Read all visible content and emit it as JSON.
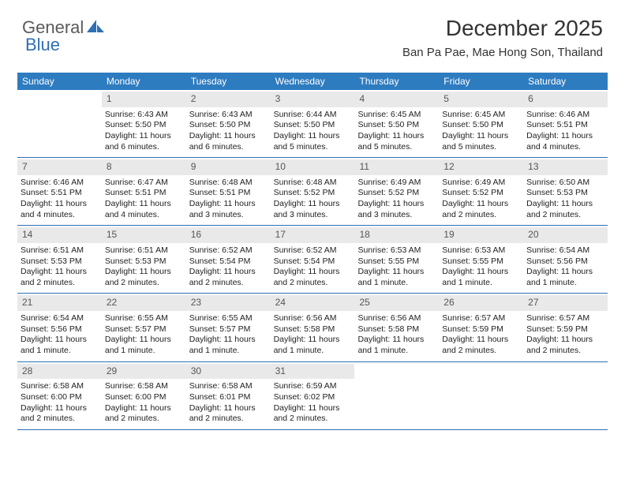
{
  "brand": {
    "part1": "General",
    "part2": "Blue"
  },
  "header": {
    "title": "December 2025",
    "location": "Ban Pa Pae, Mae Hong Son, Thailand"
  },
  "dow": [
    "Sunday",
    "Monday",
    "Tuesday",
    "Wednesday",
    "Thursday",
    "Friday",
    "Saturday"
  ],
  "colors": {
    "header_bar": "#2e7cc0",
    "divider": "#2e6fb5",
    "daynum_bg": "#e9e9e9",
    "brand_blue": "#2e6fb5",
    "brand_gray": "#5a5a5a"
  },
  "weeks": [
    [
      {
        "n": "",
        "empty": true
      },
      {
        "n": "1",
        "sr": "Sunrise: 6:43 AM",
        "ss": "Sunset: 5:50 PM",
        "dl": "Daylight: 11 hours and 6 minutes."
      },
      {
        "n": "2",
        "sr": "Sunrise: 6:43 AM",
        "ss": "Sunset: 5:50 PM",
        "dl": "Daylight: 11 hours and 6 minutes."
      },
      {
        "n": "3",
        "sr": "Sunrise: 6:44 AM",
        "ss": "Sunset: 5:50 PM",
        "dl": "Daylight: 11 hours and 5 minutes."
      },
      {
        "n": "4",
        "sr": "Sunrise: 6:45 AM",
        "ss": "Sunset: 5:50 PM",
        "dl": "Daylight: 11 hours and 5 minutes."
      },
      {
        "n": "5",
        "sr": "Sunrise: 6:45 AM",
        "ss": "Sunset: 5:50 PM",
        "dl": "Daylight: 11 hours and 5 minutes."
      },
      {
        "n": "6",
        "sr": "Sunrise: 6:46 AM",
        "ss": "Sunset: 5:51 PM",
        "dl": "Daylight: 11 hours and 4 minutes."
      }
    ],
    [
      {
        "n": "7",
        "sr": "Sunrise: 6:46 AM",
        "ss": "Sunset: 5:51 PM",
        "dl": "Daylight: 11 hours and 4 minutes."
      },
      {
        "n": "8",
        "sr": "Sunrise: 6:47 AM",
        "ss": "Sunset: 5:51 PM",
        "dl": "Daylight: 11 hours and 4 minutes."
      },
      {
        "n": "9",
        "sr": "Sunrise: 6:48 AM",
        "ss": "Sunset: 5:51 PM",
        "dl": "Daylight: 11 hours and 3 minutes."
      },
      {
        "n": "10",
        "sr": "Sunrise: 6:48 AM",
        "ss": "Sunset: 5:52 PM",
        "dl": "Daylight: 11 hours and 3 minutes."
      },
      {
        "n": "11",
        "sr": "Sunrise: 6:49 AM",
        "ss": "Sunset: 5:52 PM",
        "dl": "Daylight: 11 hours and 3 minutes."
      },
      {
        "n": "12",
        "sr": "Sunrise: 6:49 AM",
        "ss": "Sunset: 5:52 PM",
        "dl": "Daylight: 11 hours and 2 minutes."
      },
      {
        "n": "13",
        "sr": "Sunrise: 6:50 AM",
        "ss": "Sunset: 5:53 PM",
        "dl": "Daylight: 11 hours and 2 minutes."
      }
    ],
    [
      {
        "n": "14",
        "sr": "Sunrise: 6:51 AM",
        "ss": "Sunset: 5:53 PM",
        "dl": "Daylight: 11 hours and 2 minutes."
      },
      {
        "n": "15",
        "sr": "Sunrise: 6:51 AM",
        "ss": "Sunset: 5:53 PM",
        "dl": "Daylight: 11 hours and 2 minutes."
      },
      {
        "n": "16",
        "sr": "Sunrise: 6:52 AM",
        "ss": "Sunset: 5:54 PM",
        "dl": "Daylight: 11 hours and 2 minutes."
      },
      {
        "n": "17",
        "sr": "Sunrise: 6:52 AM",
        "ss": "Sunset: 5:54 PM",
        "dl": "Daylight: 11 hours and 2 minutes."
      },
      {
        "n": "18",
        "sr": "Sunrise: 6:53 AM",
        "ss": "Sunset: 5:55 PM",
        "dl": "Daylight: 11 hours and 1 minute."
      },
      {
        "n": "19",
        "sr": "Sunrise: 6:53 AM",
        "ss": "Sunset: 5:55 PM",
        "dl": "Daylight: 11 hours and 1 minute."
      },
      {
        "n": "20",
        "sr": "Sunrise: 6:54 AM",
        "ss": "Sunset: 5:56 PM",
        "dl": "Daylight: 11 hours and 1 minute."
      }
    ],
    [
      {
        "n": "21",
        "sr": "Sunrise: 6:54 AM",
        "ss": "Sunset: 5:56 PM",
        "dl": "Daylight: 11 hours and 1 minute."
      },
      {
        "n": "22",
        "sr": "Sunrise: 6:55 AM",
        "ss": "Sunset: 5:57 PM",
        "dl": "Daylight: 11 hours and 1 minute."
      },
      {
        "n": "23",
        "sr": "Sunrise: 6:55 AM",
        "ss": "Sunset: 5:57 PM",
        "dl": "Daylight: 11 hours and 1 minute."
      },
      {
        "n": "24",
        "sr": "Sunrise: 6:56 AM",
        "ss": "Sunset: 5:58 PM",
        "dl": "Daylight: 11 hours and 1 minute."
      },
      {
        "n": "25",
        "sr": "Sunrise: 6:56 AM",
        "ss": "Sunset: 5:58 PM",
        "dl": "Daylight: 11 hours and 1 minute."
      },
      {
        "n": "26",
        "sr": "Sunrise: 6:57 AM",
        "ss": "Sunset: 5:59 PM",
        "dl": "Daylight: 11 hours and 2 minutes."
      },
      {
        "n": "27",
        "sr": "Sunrise: 6:57 AM",
        "ss": "Sunset: 5:59 PM",
        "dl": "Daylight: 11 hours and 2 minutes."
      }
    ],
    [
      {
        "n": "28",
        "sr": "Sunrise: 6:58 AM",
        "ss": "Sunset: 6:00 PM",
        "dl": "Daylight: 11 hours and 2 minutes."
      },
      {
        "n": "29",
        "sr": "Sunrise: 6:58 AM",
        "ss": "Sunset: 6:00 PM",
        "dl": "Daylight: 11 hours and 2 minutes."
      },
      {
        "n": "30",
        "sr": "Sunrise: 6:58 AM",
        "ss": "Sunset: 6:01 PM",
        "dl": "Daylight: 11 hours and 2 minutes."
      },
      {
        "n": "31",
        "sr": "Sunrise: 6:59 AM",
        "ss": "Sunset: 6:02 PM",
        "dl": "Daylight: 11 hours and 2 minutes."
      },
      {
        "n": "",
        "empty": true
      },
      {
        "n": "",
        "empty": true
      },
      {
        "n": "",
        "empty": true
      }
    ]
  ]
}
